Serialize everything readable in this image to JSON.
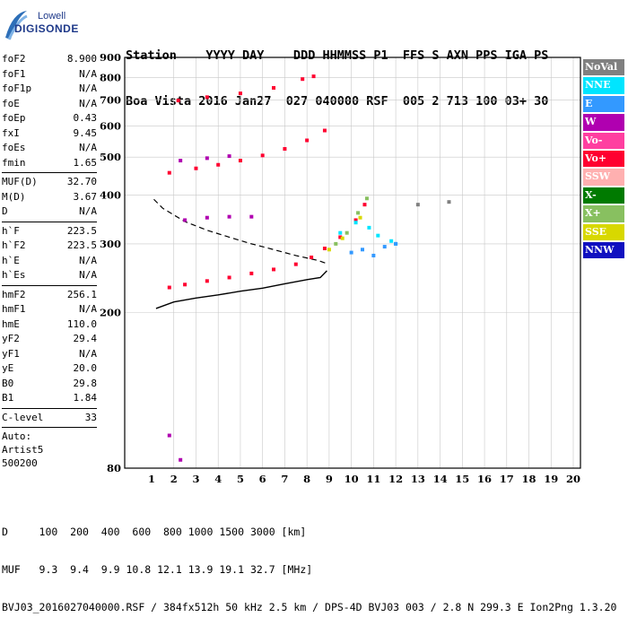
{
  "logo": {
    "brand": "Lowell",
    "product": "DIGISONDE"
  },
  "header": {
    "line1": "Station    YYYY DAY    DDD HHMMSS P1  FFS S AXN PPS IGA PS",
    "line2": "Boa Vista 2016 Jan27  027 040000 RSF  005 2 713 100 03+ 30"
  },
  "params_group1": [
    {
      "name": "foF2",
      "value": "8.900"
    },
    {
      "name": "foF1",
      "value": "N/A"
    },
    {
      "name": "foF1p",
      "value": "N/A"
    },
    {
      "name": "foE",
      "value": "N/A"
    },
    {
      "name": "foEp",
      "value": "0.43"
    },
    {
      "name": "fxI",
      "value": "9.45"
    },
    {
      "name": "foEs",
      "value": "N/A"
    },
    {
      "name": "fmin",
      "value": "1.65"
    }
  ],
  "params_group2": [
    {
      "name": "MUF(D)",
      "value": "32.70"
    },
    {
      "name": "M(D)",
      "value": "3.67"
    },
    {
      "name": "D",
      "value": "N/A"
    }
  ],
  "params_group3": [
    {
      "name": "h`F",
      "value": "223.5"
    },
    {
      "name": "h`F2",
      "value": "223.5"
    },
    {
      "name": "h`E",
      "value": "N/A"
    },
    {
      "name": "h`Es",
      "value": "N/A"
    }
  ],
  "params_group4": [
    {
      "name": "hmF2",
      "value": "256.1"
    },
    {
      "name": "hmF1",
      "value": "N/A"
    },
    {
      "name": "hmE",
      "value": "110.0"
    },
    {
      "name": "yF2",
      "value": "29.4"
    },
    {
      "name": "yF1",
      "value": "N/A"
    },
    {
      "name": "yE",
      "value": "20.0"
    },
    {
      "name": "B0",
      "value": "29.8"
    },
    {
      "name": "B1",
      "value": "1.84"
    }
  ],
  "params_group5": [
    {
      "name": "C-level",
      "value": "33"
    }
  ],
  "autoscaling": {
    "label": "Auto:",
    "software": "Artist5",
    "version": "500200"
  },
  "legend": [
    {
      "label": "NoVal",
      "color": "#808080"
    },
    {
      "label": "NNE",
      "color": "#00e5ff"
    },
    {
      "label": "E",
      "color": "#3399ff"
    },
    {
      "label": "W",
      "color": "#b000b0"
    },
    {
      "label": "Vo-",
      "color": "#ff3fa0"
    },
    {
      "label": "Vo+",
      "color": "#ff0030"
    },
    {
      "label": "SSW",
      "color": "#ffb0b0"
    },
    {
      "label": "X-",
      "color": "#007a00"
    },
    {
      "label": "X+",
      "color": "#88c060"
    },
    {
      "label": "SSE",
      "color": "#d8d800"
    },
    {
      "label": "NNW",
      "color": "#1010c0"
    }
  ],
  "footer": {
    "line1": "D     100  200  400  600  800 1000 1500 3000 [km]",
    "line2": "MUF   9.3  9.4  9.9 10.8 12.1 13.9 19.1 32.7 [MHz]",
    "line3": "BVJ03_2016027040000.RSF / 384fx512h 50 kHz 2.5 km / DPS-4D BVJ03 003 / 2.8 N 299.3 E Ion2Png 1.3.20"
  },
  "chart_data": {
    "type": "scatter",
    "title": "",
    "xlabel": "",
    "ylabel": "",
    "x_unit": "MHz",
    "y_unit": "km",
    "xlim": [
      1,
      20
    ],
    "ylim": [
      80,
      900
    ],
    "y_scale": "log",
    "grid": true,
    "legend_position": "right",
    "x_ticks": [
      1,
      2,
      3,
      4,
      5,
      6,
      7,
      8,
      9,
      10,
      11,
      12,
      13,
      14,
      15,
      16,
      17,
      18,
      19,
      20
    ],
    "y_ticks": [
      80,
      200,
      300,
      400,
      500,
      600,
      700,
      800,
      900
    ],
    "series": [
      {
        "name": "Vo+",
        "points": [
          [
            1.8,
            232
          ],
          [
            2.5,
            236
          ],
          [
            3.5,
            241
          ],
          [
            4.5,
            246
          ],
          [
            5.5,
            252
          ],
          [
            6.5,
            258
          ],
          [
            7.5,
            266
          ],
          [
            8.2,
            277
          ],
          [
            8.8,
            292
          ],
          [
            9.5,
            312
          ],
          [
            10.2,
            345
          ],
          [
            10.6,
            378
          ],
          [
            1.8,
            456
          ],
          [
            3.0,
            468
          ],
          [
            4.0,
            478
          ],
          [
            5.0,
            490
          ],
          [
            6.0,
            505
          ],
          [
            7.0,
            525
          ],
          [
            8.0,
            552
          ],
          [
            8.8,
            585
          ],
          [
            2.2,
            698
          ],
          [
            3.5,
            712
          ],
          [
            5.0,
            728
          ],
          [
            6.5,
            752
          ],
          [
            7.8,
            792
          ],
          [
            8.3,
            805
          ]
        ]
      },
      {
        "name": "W",
        "points": [
          [
            2.5,
            345
          ],
          [
            3.5,
            350
          ],
          [
            4.5,
            352
          ],
          [
            5.5,
            352
          ],
          [
            2.3,
            490
          ],
          [
            3.5,
            497
          ],
          [
            4.5,
            503
          ],
          [
            1.8,
            97
          ],
          [
            2.3,
            84
          ]
        ]
      },
      {
        "name": "NNE",
        "points": [
          [
            9.5,
            320
          ],
          [
            10.2,
            340
          ],
          [
            10.8,
            330
          ],
          [
            11.2,
            315
          ],
          [
            11.8,
            305
          ],
          [
            12.0,
            300
          ]
        ]
      },
      {
        "name": "E",
        "points": [
          [
            10.0,
            285
          ],
          [
            10.5,
            290
          ],
          [
            11.0,
            280
          ],
          [
            11.5,
            295
          ],
          [
            12.0,
            300
          ]
        ]
      },
      {
        "name": "X+",
        "points": [
          [
            9.3,
            300
          ],
          [
            9.8,
            320
          ],
          [
            10.3,
            360
          ],
          [
            10.7,
            392
          ]
        ]
      },
      {
        "name": "SSE",
        "points": [
          [
            9.0,
            290
          ],
          [
            9.6,
            310
          ],
          [
            10.4,
            350
          ]
        ]
      },
      {
        "name": "NoVal",
        "points": [
          [
            13.0,
            378
          ],
          [
            14.4,
            384
          ]
        ]
      }
    ],
    "profile_curve": [
      [
        1.2,
        205
      ],
      [
        2,
        213
      ],
      [
        3,
        218
      ],
      [
        4,
        222
      ],
      [
        5,
        227
      ],
      [
        6,
        231
      ],
      [
        7,
        237
      ],
      [
        8,
        243
      ],
      [
        8.6,
        246
      ],
      [
        8.9,
        256
      ]
    ],
    "dashed_curve": [
      [
        1.1,
        390
      ],
      [
        1.5,
        370
      ],
      [
        2.5,
        342
      ],
      [
        3.5,
        325
      ],
      [
        4.5,
        312
      ],
      [
        5.5,
        300
      ],
      [
        6.5,
        290
      ],
      [
        7.5,
        280
      ],
      [
        8.5,
        272
      ],
      [
        8.9,
        267
      ]
    ]
  }
}
